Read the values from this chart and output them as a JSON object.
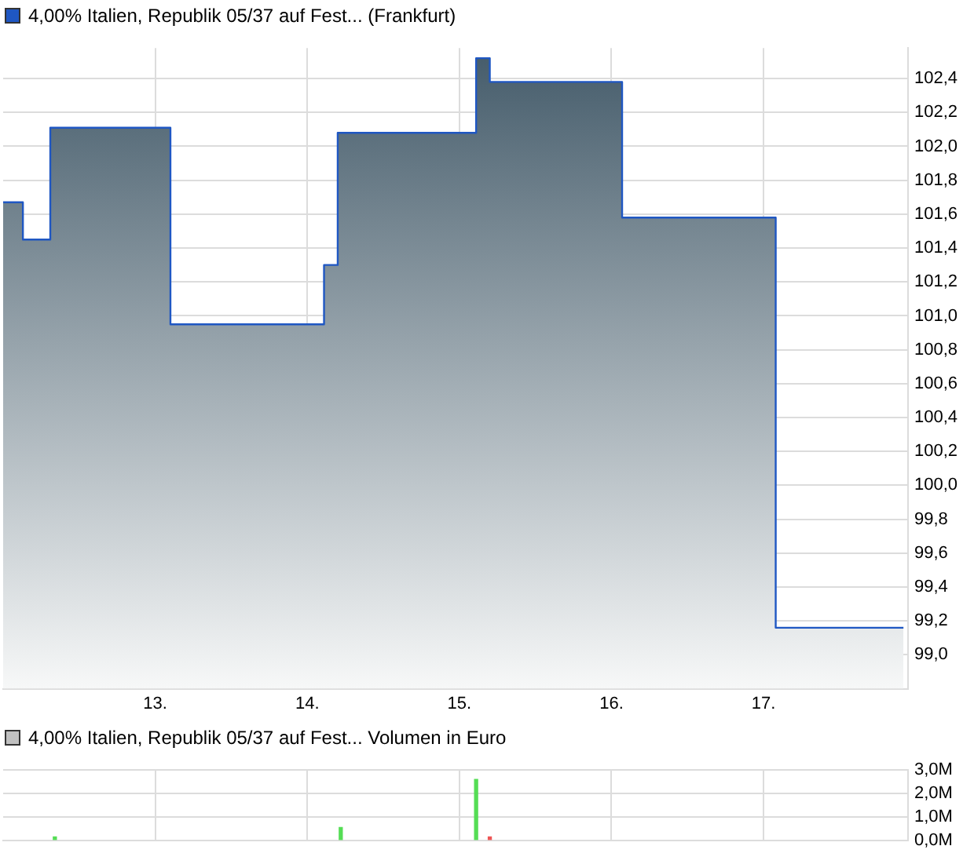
{
  "chart_data": [
    {
      "type": "area",
      "legend": "top left",
      "grid": true,
      "xlim": [
        12,
        17.95
      ],
      "ylim": [
        98.8,
        102.58
      ],
      "xticks": [
        {
          "value": 13,
          "label": "13."
        },
        {
          "value": 14,
          "label": "14."
        },
        {
          "value": 15,
          "label": "15."
        },
        {
          "value": 16,
          "label": "16."
        },
        {
          "value": 17,
          "label": "17."
        }
      ],
      "yticks": [
        {
          "value": 99,
          "label": "99,0"
        },
        {
          "value": 99.2,
          "label": "99,2"
        },
        {
          "value": 99.4,
          "label": "99,4"
        },
        {
          "value": 99.6,
          "label": "99,6"
        },
        {
          "value": 99.8,
          "label": "99,8"
        },
        {
          "value": 100,
          "label": "100,0"
        },
        {
          "value": 100.2,
          "label": "100,2"
        },
        {
          "value": 100.4,
          "label": "100,4"
        },
        {
          "value": 100.6,
          "label": "100,6"
        },
        {
          "value": 100.8,
          "label": "100,8"
        },
        {
          "value": 101,
          "label": "101,0"
        },
        {
          "value": 101.2,
          "label": "101,2"
        },
        {
          "value": 101.4,
          "label": "101,4"
        },
        {
          "value": 101.6,
          "label": "101,6"
        },
        {
          "value": 101.8,
          "label": "101,8"
        },
        {
          "value": 102,
          "label": "102,0"
        },
        {
          "value": 102.2,
          "label": "102,2"
        },
        {
          "value": 102.4,
          "label": "102,4"
        }
      ],
      "series": [
        {
          "name": "4,00% Italien, Republik 05/37 auf Fest... (Frankfurt)",
          "color": "#1f57c3",
          "x": [
            12.0,
            12.13,
            12.13,
            12.31,
            12.31,
            13.1,
            13.1,
            14.11,
            14.11,
            14.2,
            14.2,
            15.11,
            15.11,
            15.2,
            15.2,
            16.07,
            16.07,
            17.08,
            17.08,
            17.92
          ],
          "values": [
            101.67,
            101.67,
            101.45,
            101.45,
            102.11,
            102.11,
            100.95,
            100.95,
            101.3,
            101.3,
            102.08,
            102.08,
            102.52,
            102.52,
            102.38,
            102.38,
            101.58,
            101.58,
            99.16,
            99.16
          ]
        }
      ]
    },
    {
      "type": "bar",
      "legend": "top left",
      "grid": true,
      "tick_labels": "y",
      "xlim": [
        12,
        17.95
      ],
      "ylim": [
        0,
        3
      ],
      "xticks": [
        {
          "value": 13,
          "label": null
        },
        {
          "value": 14,
          "label": null
        },
        {
          "value": 15,
          "label": null
        },
        {
          "value": 16,
          "label": null
        },
        {
          "value": 17,
          "label": null
        }
      ],
      "yticks": [
        {
          "value": 0,
          "label": "0,0M"
        },
        {
          "value": 1,
          "label": "1,0M"
        },
        {
          "value": 2,
          "label": "2,0M"
        },
        {
          "value": 3,
          "label": "3,0M"
        }
      ],
      "series": [
        {
          "name": "4,00% Italien, Republik 05/37 auf Fest... Volumen in Euro",
          "color": "#c0c0c0",
          "colors": [
            "#55dd55",
            "#55dd55",
            "#55dd55",
            "#ee5555"
          ],
          "x": [
            12.34,
            14.22,
            15.11,
            15.2
          ],
          "values": [
            0.15,
            0.55,
            2.6,
            0.15
          ]
        }
      ]
    }
  ]
}
